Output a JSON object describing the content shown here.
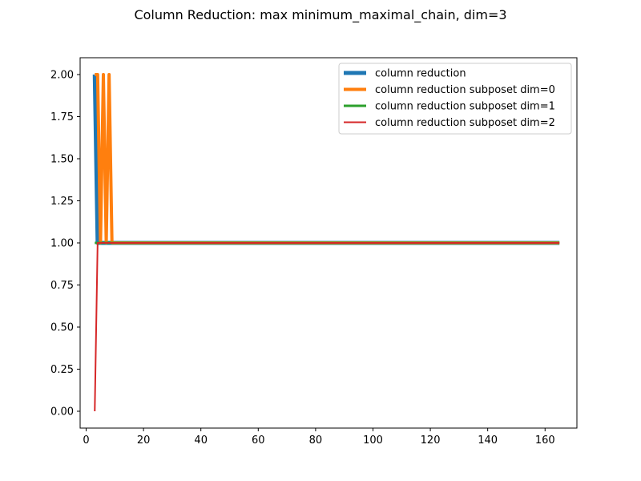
{
  "chart_data": {
    "type": "line",
    "title": "Column Reduction: max minimum_maximal_chain, dim=3",
    "xlabel": "",
    "ylabel": "",
    "xlim": [
      -2.1,
      171.1
    ],
    "ylim": [
      -0.1,
      2.1
    ],
    "xticks": [
      0,
      20,
      40,
      60,
      80,
      100,
      120,
      140,
      160
    ],
    "xtick_labels": [
      "0",
      "20",
      "40",
      "60",
      "80",
      "100",
      "120",
      "140",
      "160"
    ],
    "yticks": [
      0.0,
      0.25,
      0.5,
      0.75,
      1.0,
      1.25,
      1.5,
      1.75,
      2.0
    ],
    "ytick_labels": [
      "0.00",
      "0.25",
      "0.50",
      "0.75",
      "1.00",
      "1.25",
      "1.50",
      "1.75",
      "2.00"
    ],
    "grid": false,
    "legend_position": "top-right",
    "series": [
      {
        "name": "column reduction",
        "color": "#1f77b4",
        "line_width": 5,
        "points": [
          [
            3,
            2
          ],
          [
            4,
            1
          ],
          [
            5,
            1
          ],
          [
            165,
            1
          ]
        ]
      },
      {
        "name": "column reduction subposet dim=0",
        "color": "#ff7f0e",
        "line_width": 4,
        "points": [
          [
            3,
            2
          ],
          [
            4,
            2
          ],
          [
            5,
            1
          ],
          [
            6,
            2
          ],
          [
            7,
            1
          ],
          [
            8,
            2
          ],
          [
            9,
            1
          ],
          [
            10,
            1
          ],
          [
            165,
            1
          ]
        ]
      },
      {
        "name": "column reduction subposet dim=1",
        "color": "#2ca02c",
        "line_width": 3,
        "points": [
          [
            3,
            1
          ],
          [
            165,
            1
          ]
        ]
      },
      {
        "name": "column reduction subposet dim=2",
        "color": "#d62728",
        "line_width": 2,
        "points": [
          [
            3,
            0
          ],
          [
            4,
            1
          ],
          [
            165,
            1
          ]
        ]
      }
    ]
  }
}
